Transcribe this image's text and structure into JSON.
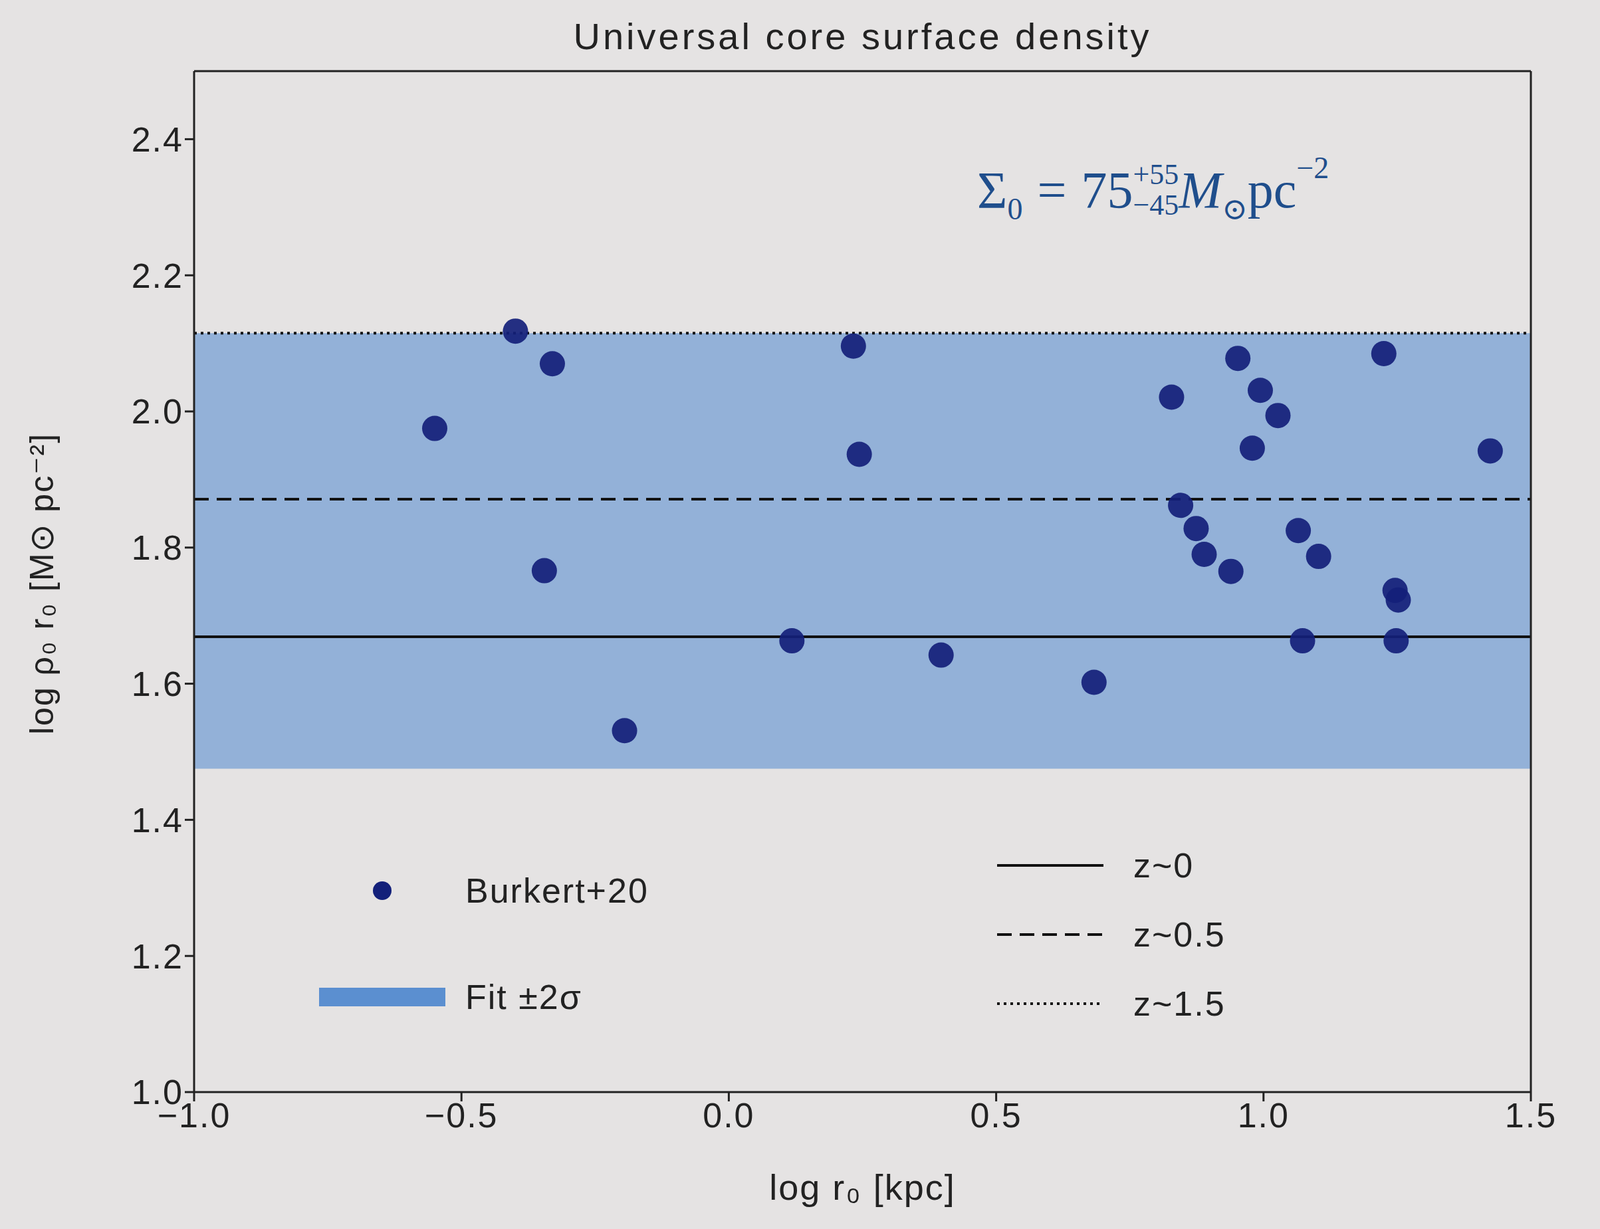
{
  "chart_data": {
    "type": "scatter",
    "title": "Universal core surface density",
    "x_label": "log r₀ [kpc]",
    "y_label": "log ρ₀ r₀ [M⊙ pc⁻²]",
    "xlim": [
      -1.0,
      1.5
    ],
    "xticks": [
      {
        "value": -1.0,
        "label": "−1.0"
      },
      {
        "value": -0.5,
        "label": "−0.5"
      },
      {
        "value": 0.0,
        "label": "0.0"
      },
      {
        "value": 0.5,
        "label": "0.5"
      },
      {
        "value": 1.0,
        "label": "1.0"
      },
      {
        "value": 1.5,
        "label": "1.5"
      }
    ],
    "ylim": [
      1.0,
      2.5
    ],
    "yticks": [
      {
        "value": 1.0,
        "label": "1.0"
      },
      {
        "value": 1.2,
        "label": "1.2"
      },
      {
        "value": 1.4,
        "label": "1.4"
      },
      {
        "value": 1.6,
        "label": "1.6"
      },
      {
        "value": 1.8,
        "label": "1.8"
      },
      {
        "value": 2.0,
        "label": "2.0"
      },
      {
        "value": 2.2,
        "label": "2.2"
      },
      {
        "value": 2.4,
        "label": "2.4"
      }
    ],
    "grid": false,
    "legend": "bottom",
    "series": [
      {
        "name": "Burkert+20",
        "type": "scatter",
        "marker": "circle",
        "color": "#13207a",
        "x": [
          -0.399,
          -0.33,
          -0.55,
          -0.345,
          -0.195,
          0.118,
          0.233,
          0.244,
          0.397,
          0.683,
          0.828,
          0.845,
          0.874,
          0.889,
          0.939,
          0.952,
          0.979,
          0.994,
          1.027,
          1.065,
          1.073,
          1.103,
          1.225,
          1.246,
          1.252,
          1.248,
          1.424
        ],
        "values": [
          2.118,
          2.07,
          1.975,
          1.766,
          1.531,
          1.663,
          2.096,
          1.937,
          1.642,
          1.602,
          2.021,
          1.862,
          1.828,
          1.79,
          1.765,
          2.078,
          1.946,
          2.031,
          1.994,
          1.825,
          1.663,
          1.787,
          2.085,
          1.737,
          1.723,
          1.663,
          1.942
        ]
      }
    ],
    "band": {
      "name": "Fit ±2σ",
      "range": [
        1.475,
        2.115
      ],
      "color": "#5b8fd0"
    },
    "lines": [
      {
        "name": "z~0",
        "value": 1.669,
        "line_style": "solid",
        "color": "#111111"
      },
      {
        "name": "z~0.5",
        "value": 1.871,
        "line_style": "dashed",
        "color": "#111111"
      },
      {
        "name": "z~1.5",
        "value": 2.115,
        "line_style": "dotted",
        "color": "#111111"
      }
    ],
    "annotation": {
      "symbol": "Σ",
      "symbol_sub": "0",
      "eq": "=",
      "value": 75,
      "upper": "+55",
      "lower": "−45",
      "unit": "M",
      "unit_sub": "⊙",
      "unit2": "pc",
      "unit2_sup": "−2",
      "color": "#1f4e8c"
    }
  }
}
